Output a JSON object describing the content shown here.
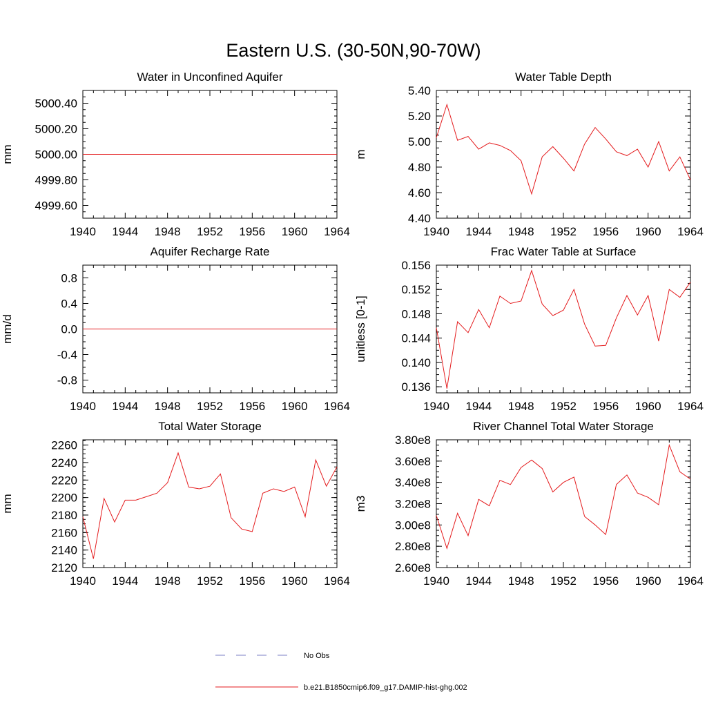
{
  "figure": {
    "title": "Eastern U.S. (30-50N,90-70W)",
    "legend": [
      {
        "label": "No Obs",
        "color": "#7b7fc4",
        "style": "dashed"
      },
      {
        "label": "b.e21.B1850cmip6.f09_g17.DAMIP-hist-ghg.002",
        "color": "#e41a1c",
        "style": "solid"
      }
    ]
  },
  "chart_data": [
    {
      "type": "line",
      "title": "Water in Unconfined Aquifer",
      "ylabel": "mm",
      "xlim": [
        1940,
        1964
      ],
      "ylim": [
        4999.5,
        5000.5
      ],
      "x_ticks": [
        1940,
        1944,
        1948,
        1952,
        1956,
        1960,
        1964
      ],
      "y_ticks": [
        "4999.60",
        "4999.80",
        "5000.00",
        "5000.20",
        "5000.40"
      ],
      "y_tick_values": [
        4999.6,
        4999.8,
        5000.0,
        5000.2,
        5000.4
      ],
      "y_minor_step": 0.05,
      "x": [
        1940,
        1941,
        1942,
        1943,
        1944,
        1945,
        1946,
        1947,
        1948,
        1949,
        1950,
        1951,
        1952,
        1953,
        1954,
        1955,
        1956,
        1957,
        1958,
        1959,
        1960,
        1961,
        1962,
        1963,
        1964
      ],
      "values": [
        5000,
        5000,
        5000,
        5000,
        5000,
        5000,
        5000,
        5000,
        5000,
        5000,
        5000,
        5000,
        5000,
        5000,
        5000,
        5000,
        5000,
        5000,
        5000,
        5000,
        5000,
        5000,
        5000,
        5000,
        5000
      ],
      "color": "#e41a1c"
    },
    {
      "type": "line",
      "title": "Water Table Depth",
      "ylabel": "m",
      "xlim": [
        1940,
        1964
      ],
      "ylim": [
        4.4,
        5.4
      ],
      "x_ticks": [
        1940,
        1944,
        1948,
        1952,
        1956,
        1960,
        1964
      ],
      "y_ticks": [
        "4.40",
        "4.60",
        "4.80",
        "5.00",
        "5.20",
        "5.40"
      ],
      "y_tick_values": [
        4.4,
        4.6,
        4.8,
        5.0,
        5.2,
        5.4
      ],
      "y_minor_step": 0.05,
      "x": [
        1940,
        1941,
        1942,
        1943,
        1944,
        1945,
        1946,
        1947,
        1948,
        1949,
        1950,
        1951,
        1952,
        1953,
        1954,
        1955,
        1956,
        1957,
        1958,
        1959,
        1960,
        1961,
        1962,
        1963,
        1964
      ],
      "values": [
        5.03,
        5.29,
        5.01,
        5.04,
        4.94,
        4.99,
        4.97,
        4.93,
        4.85,
        4.59,
        4.88,
        4.96,
        4.87,
        4.77,
        4.98,
        5.11,
        5.02,
        4.92,
        4.89,
        4.94,
        4.8,
        5.0,
        4.77,
        4.88,
        4.7
      ],
      "color": "#e41a1c"
    },
    {
      "type": "line",
      "title": "Aquifer Recharge Rate",
      "ylabel": "mm/d",
      "xlim": [
        1940,
        1964
      ],
      "ylim": [
        -1.0,
        1.0
      ],
      "x_ticks": [
        1940,
        1944,
        1948,
        1952,
        1956,
        1960,
        1964
      ],
      "y_ticks": [
        "-0.8",
        "-0.4",
        "0.0",
        "0.4",
        "0.8"
      ],
      "y_tick_values": [
        -0.8,
        -0.4,
        0.0,
        0.4,
        0.8
      ],
      "y_minor_step": 0.1,
      "x": [
        1940,
        1941,
        1942,
        1943,
        1944,
        1945,
        1946,
        1947,
        1948,
        1949,
        1950,
        1951,
        1952,
        1953,
        1954,
        1955,
        1956,
        1957,
        1958,
        1959,
        1960,
        1961,
        1962,
        1963,
        1964
      ],
      "values": [
        0,
        0,
        0,
        0,
        0,
        0,
        0,
        0,
        0,
        0,
        0,
        0,
        0,
        0,
        0,
        0,
        0,
        0,
        0,
        0,
        0,
        0,
        0,
        0,
        0
      ],
      "color": "#e41a1c"
    },
    {
      "type": "line",
      "title": "Frac Water Table at Surface",
      "ylabel": "unitless [0-1]",
      "xlim": [
        1940,
        1964
      ],
      "ylim": [
        0.135,
        0.156
      ],
      "x_ticks": [
        1940,
        1944,
        1948,
        1952,
        1956,
        1960,
        1964
      ],
      "y_ticks": [
        "0.136",
        "0.140",
        "0.144",
        "0.148",
        "0.152",
        "0.156"
      ],
      "y_tick_values": [
        0.136,
        0.14,
        0.144,
        0.148,
        0.152,
        0.156
      ],
      "y_minor_step": 0.001,
      "x": [
        1940,
        1941,
        1942,
        1943,
        1944,
        1945,
        1946,
        1947,
        1948,
        1949,
        1950,
        1951,
        1952,
        1953,
        1954,
        1955,
        1956,
        1957,
        1958,
        1959,
        1960,
        1961,
        1962,
        1963,
        1964
      ],
      "values": [
        0.1457,
        0.1357,
        0.1467,
        0.1449,
        0.1487,
        0.1457,
        0.1509,
        0.1497,
        0.1501,
        0.1551,
        0.1496,
        0.1477,
        0.1486,
        0.152,
        0.1463,
        0.1427,
        0.1428,
        0.1473,
        0.151,
        0.1478,
        0.151,
        0.1435,
        0.152,
        0.1507,
        0.1532
      ],
      "color": "#e41a1c"
    },
    {
      "type": "line",
      "title": "Total Water Storage",
      "ylabel": "mm",
      "xlim": [
        1940,
        1964
      ],
      "ylim": [
        2120,
        2266
      ],
      "x_ticks": [
        1940,
        1944,
        1948,
        1952,
        1956,
        1960,
        1964
      ],
      "y_ticks": [
        "2120",
        "2140",
        "2160",
        "2180",
        "2200",
        "2220",
        "2240",
        "2260"
      ],
      "y_tick_values": [
        2120,
        2140,
        2160,
        2180,
        2200,
        2220,
        2240,
        2260
      ],
      "y_minor_step": 5,
      "x": [
        1940,
        1941,
        1942,
        1943,
        1944,
        1945,
        1946,
        1947,
        1948,
        1949,
        1950,
        1951,
        1952,
        1953,
        1954,
        1955,
        1956,
        1957,
        1958,
        1959,
        1960,
        1961,
        1962,
        1963,
        1964
      ],
      "values": [
        2178,
        2130,
        2199,
        2172,
        2197,
        2197,
        2201,
        2205,
        2217,
        2251,
        2212,
        2210,
        2213,
        2227,
        2177,
        2164,
        2161,
        2205,
        2210,
        2207,
        2212,
        2178,
        2243,
        2213,
        2235
      ],
      "color": "#e41a1c"
    },
    {
      "type": "line",
      "title": "River Channel Total Water Storage",
      "ylabel": "m3",
      "xlim": [
        1940,
        1964
      ],
      "ylim": [
        260000000.0,
        380000000.0
      ],
      "x_ticks": [
        1940,
        1944,
        1948,
        1952,
        1956,
        1960,
        1964
      ],
      "y_ticks": [
        "2.60e8",
        "2.80e8",
        "3.00e8",
        "3.20e8",
        "3.40e8",
        "3.60e8",
        "3.80e8"
      ],
      "y_tick_values": [
        260000000.0,
        280000000.0,
        300000000.0,
        320000000.0,
        340000000.0,
        360000000.0,
        380000000.0
      ],
      "y_minor_step": 5000000.0,
      "x": [
        1940,
        1941,
        1942,
        1943,
        1944,
        1945,
        1946,
        1947,
        1948,
        1949,
        1950,
        1951,
        1952,
        1953,
        1954,
        1955,
        1956,
        1957,
        1958,
        1959,
        1960,
        1961,
        1962,
        1963,
        1964
      ],
      "values": [
        309000000.0,
        278000000.0,
        311000000.0,
        290000000.0,
        324000000.0,
        318000000.0,
        342000000.0,
        338000000.0,
        354000000.0,
        361000000.0,
        353000000.0,
        331000000.0,
        340000000.0,
        345000000.0,
        308000000.0,
        300000000.0,
        291000000.0,
        338000000.0,
        347000000.0,
        330000000.0,
        326000000.0,
        319000000.0,
        375000000.0,
        350000000.0,
        343000000.0
      ],
      "color": "#e41a1c"
    }
  ]
}
